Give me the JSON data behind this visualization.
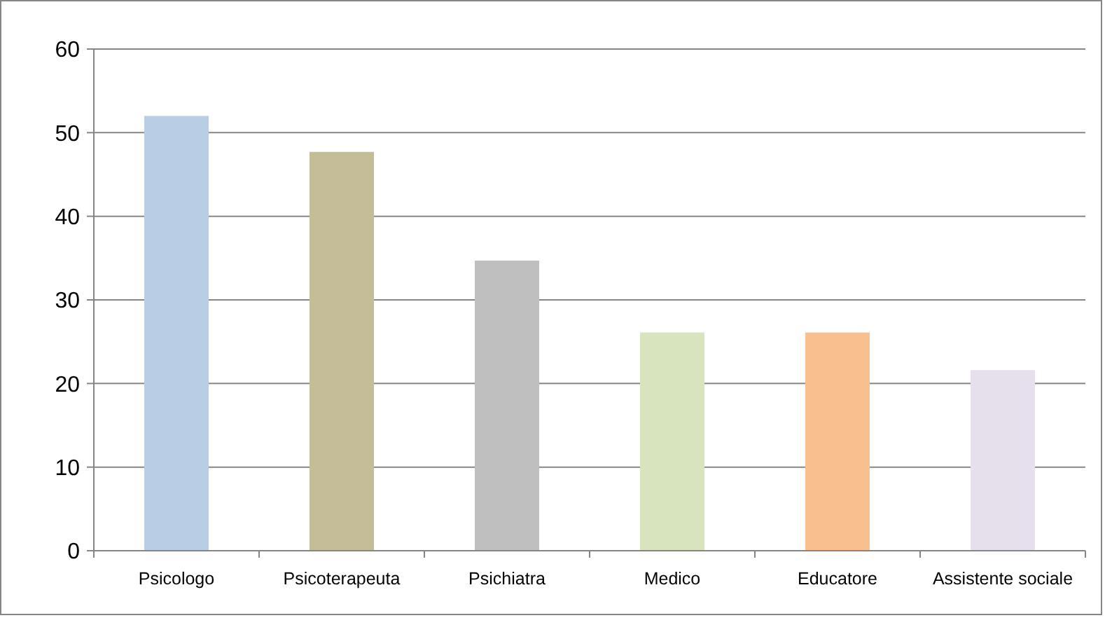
{
  "chart_data": {
    "type": "bar",
    "categories": [
      "Psicologo",
      "Psicoterapeuta",
      "Psichiatra",
      "Medico",
      "Educatore",
      "Assistente sociale"
    ],
    "values": [
      52,
      47.7,
      34.7,
      26.1,
      26.1,
      21.6
    ],
    "colors": [
      "#b9cde5",
      "#c4bd97",
      "#bfbfbf",
      "#d7e4bd",
      "#f9bf8f",
      "#e5e0ec"
    ],
    "ylim": [
      0,
      60
    ],
    "yticks": [
      0,
      10,
      20,
      30,
      40,
      50,
      60
    ],
    "grid": "y"
  }
}
